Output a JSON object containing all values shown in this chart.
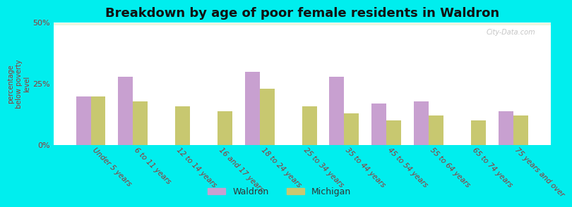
{
  "title": "Breakdown by age of poor female residents in Waldron",
  "ylabel": "percentage\nbelow poverty\nlevel",
  "categories": [
    "Under 5 years",
    "6 to 11 years",
    "12 to 14 years",
    "16 and 17 years",
    "18 to 24 years",
    "25 to 34 years",
    "35 to 44 years",
    "45 to 54 years",
    "55 to 64 years",
    "65 to 74 years",
    "75 years and over"
  ],
  "waldron": [
    20,
    28,
    0,
    0,
    30,
    0,
    28,
    17,
    18,
    0,
    14
  ],
  "michigan": [
    20,
    18,
    16,
    14,
    23,
    16,
    13,
    10,
    12,
    10,
    12
  ],
  "waldron_color": "#c8a0d0",
  "michigan_color": "#c8c870",
  "bg_top_color": "#ddeebb",
  "bg_bottom_color": "#f0f7e0",
  "outer_bg": "#00eeee",
  "ylim": [
    0,
    50
  ],
  "yticks": [
    0,
    25,
    50
  ],
  "ytick_labels": [
    "0%",
    "25%",
    "50%"
  ],
  "bar_width": 0.35,
  "title_fontsize": 13,
  "label_fontsize": 7.5,
  "tick_fontsize": 8,
  "legend_labels": [
    "Waldron",
    "Michigan"
  ]
}
